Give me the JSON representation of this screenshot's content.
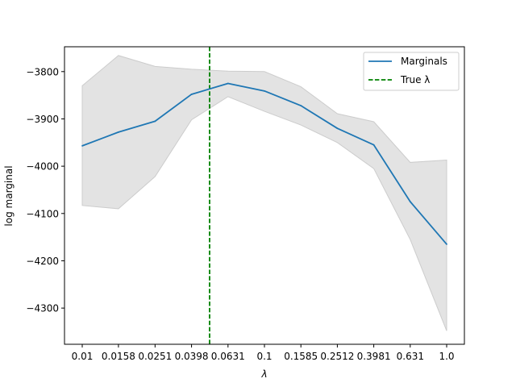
{
  "chart_data": {
    "type": "line",
    "title": "",
    "xlabel": "λ",
    "ylabel": "log marginal",
    "categories": [
      "0.01",
      "0.0158",
      "0.0251",
      "0.0398",
      "0.0631",
      "0.1",
      "0.1585",
      "0.2512",
      "0.3981",
      "0.631",
      "1.0"
    ],
    "x_scale": "log",
    "x_values": [
      0.01,
      0.0158,
      0.0251,
      0.0398,
      0.0631,
      0.1,
      0.1585,
      0.2512,
      0.3981,
      0.631,
      1.0
    ],
    "series": [
      {
        "name": "Marginals",
        "color": "#1f77b4",
        "values": [
          -3957,
          -3928,
          -3905,
          -3848,
          -3825,
          -3841,
          -3872,
          -3920,
          -3955,
          -4075,
          -4165
        ]
      }
    ],
    "band": {
      "color": "#cccccc",
      "lower": [
        -4083,
        -4090,
        -4022,
        -3902,
        -3853,
        -3884,
        -3913,
        -3950,
        -4005,
        -4155,
        -4348
      ],
      "upper": [
        -3830,
        -3766,
        -3789,
        -3795,
        -3799,
        -3800,
        -3832,
        -3889,
        -3906,
        -3992,
        -3987
      ]
    },
    "reference_line": {
      "name": "True λ",
      "x": 0.05,
      "color": "#008000",
      "style": "dashed"
    },
    "yticks": [
      -3800,
      -3900,
      -4000,
      -4100,
      -4200,
      -4300
    ],
    "ytick_labels": [
      "−3800",
      "−3900",
      "−4000",
      "−4100",
      "−4200",
      "−4300"
    ],
    "ylim": [
      -4376.5,
      -3747.5
    ],
    "grid": false,
    "legend": {
      "position": "top-right",
      "entries": [
        {
          "label": "Marginals",
          "style": "solid",
          "color": "#1f77b4"
        },
        {
          "label": "True λ",
          "style": "dashed",
          "color": "#008000"
        }
      ]
    }
  }
}
